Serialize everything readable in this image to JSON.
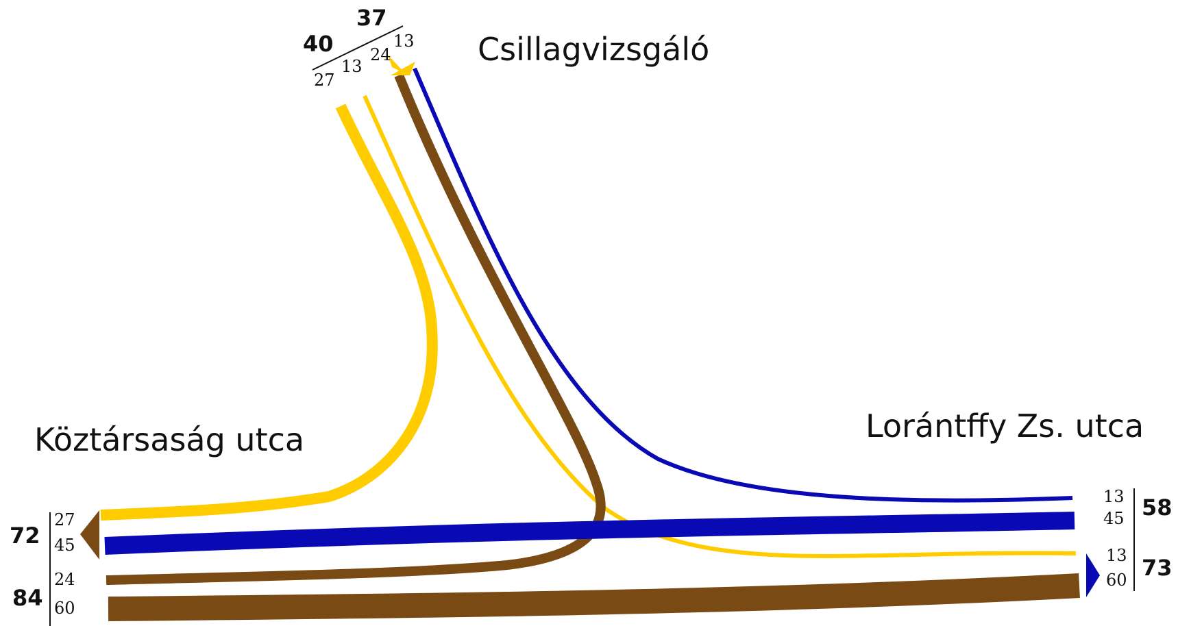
{
  "colors": {
    "yellow": "#ffcc00",
    "blue": "#0a0ab4",
    "brown": "#7a4a14",
    "text": "#111111"
  },
  "streets": {
    "north": "Csillagvizsgáló",
    "west": "Köztársaság utca",
    "east": "Lorántffy Zs. utca"
  },
  "north_counts": {
    "in_total": "40",
    "out_total": "37",
    "in_left": "27",
    "in_right": "13",
    "out_left": "24",
    "out_right": "13"
  },
  "west_counts": {
    "out_total": "72",
    "out_upper": "27",
    "out_lower": "45",
    "in_total": "84",
    "in_upper": "24",
    "in_lower": "60"
  },
  "east_counts": {
    "in_total": "58",
    "in_upper": "13",
    "in_lower": "45",
    "out_total": "73",
    "out_upper": "13",
    "out_lower": "60"
  },
  "flows": [
    {
      "name": "flow-north-to-west",
      "color": "yellow",
      "volume": 27
    },
    {
      "name": "flow-north-to-east",
      "color": "yellow",
      "volume": 13
    },
    {
      "name": "flow-west-to-north",
      "color": "brown",
      "volume": 24
    },
    {
      "name": "flow-west-to-east",
      "color": "brown",
      "volume": 60
    },
    {
      "name": "flow-east-to-north",
      "color": "blue",
      "volume": 13
    },
    {
      "name": "flow-east-to-west",
      "color": "blue",
      "volume": 45
    }
  ]
}
